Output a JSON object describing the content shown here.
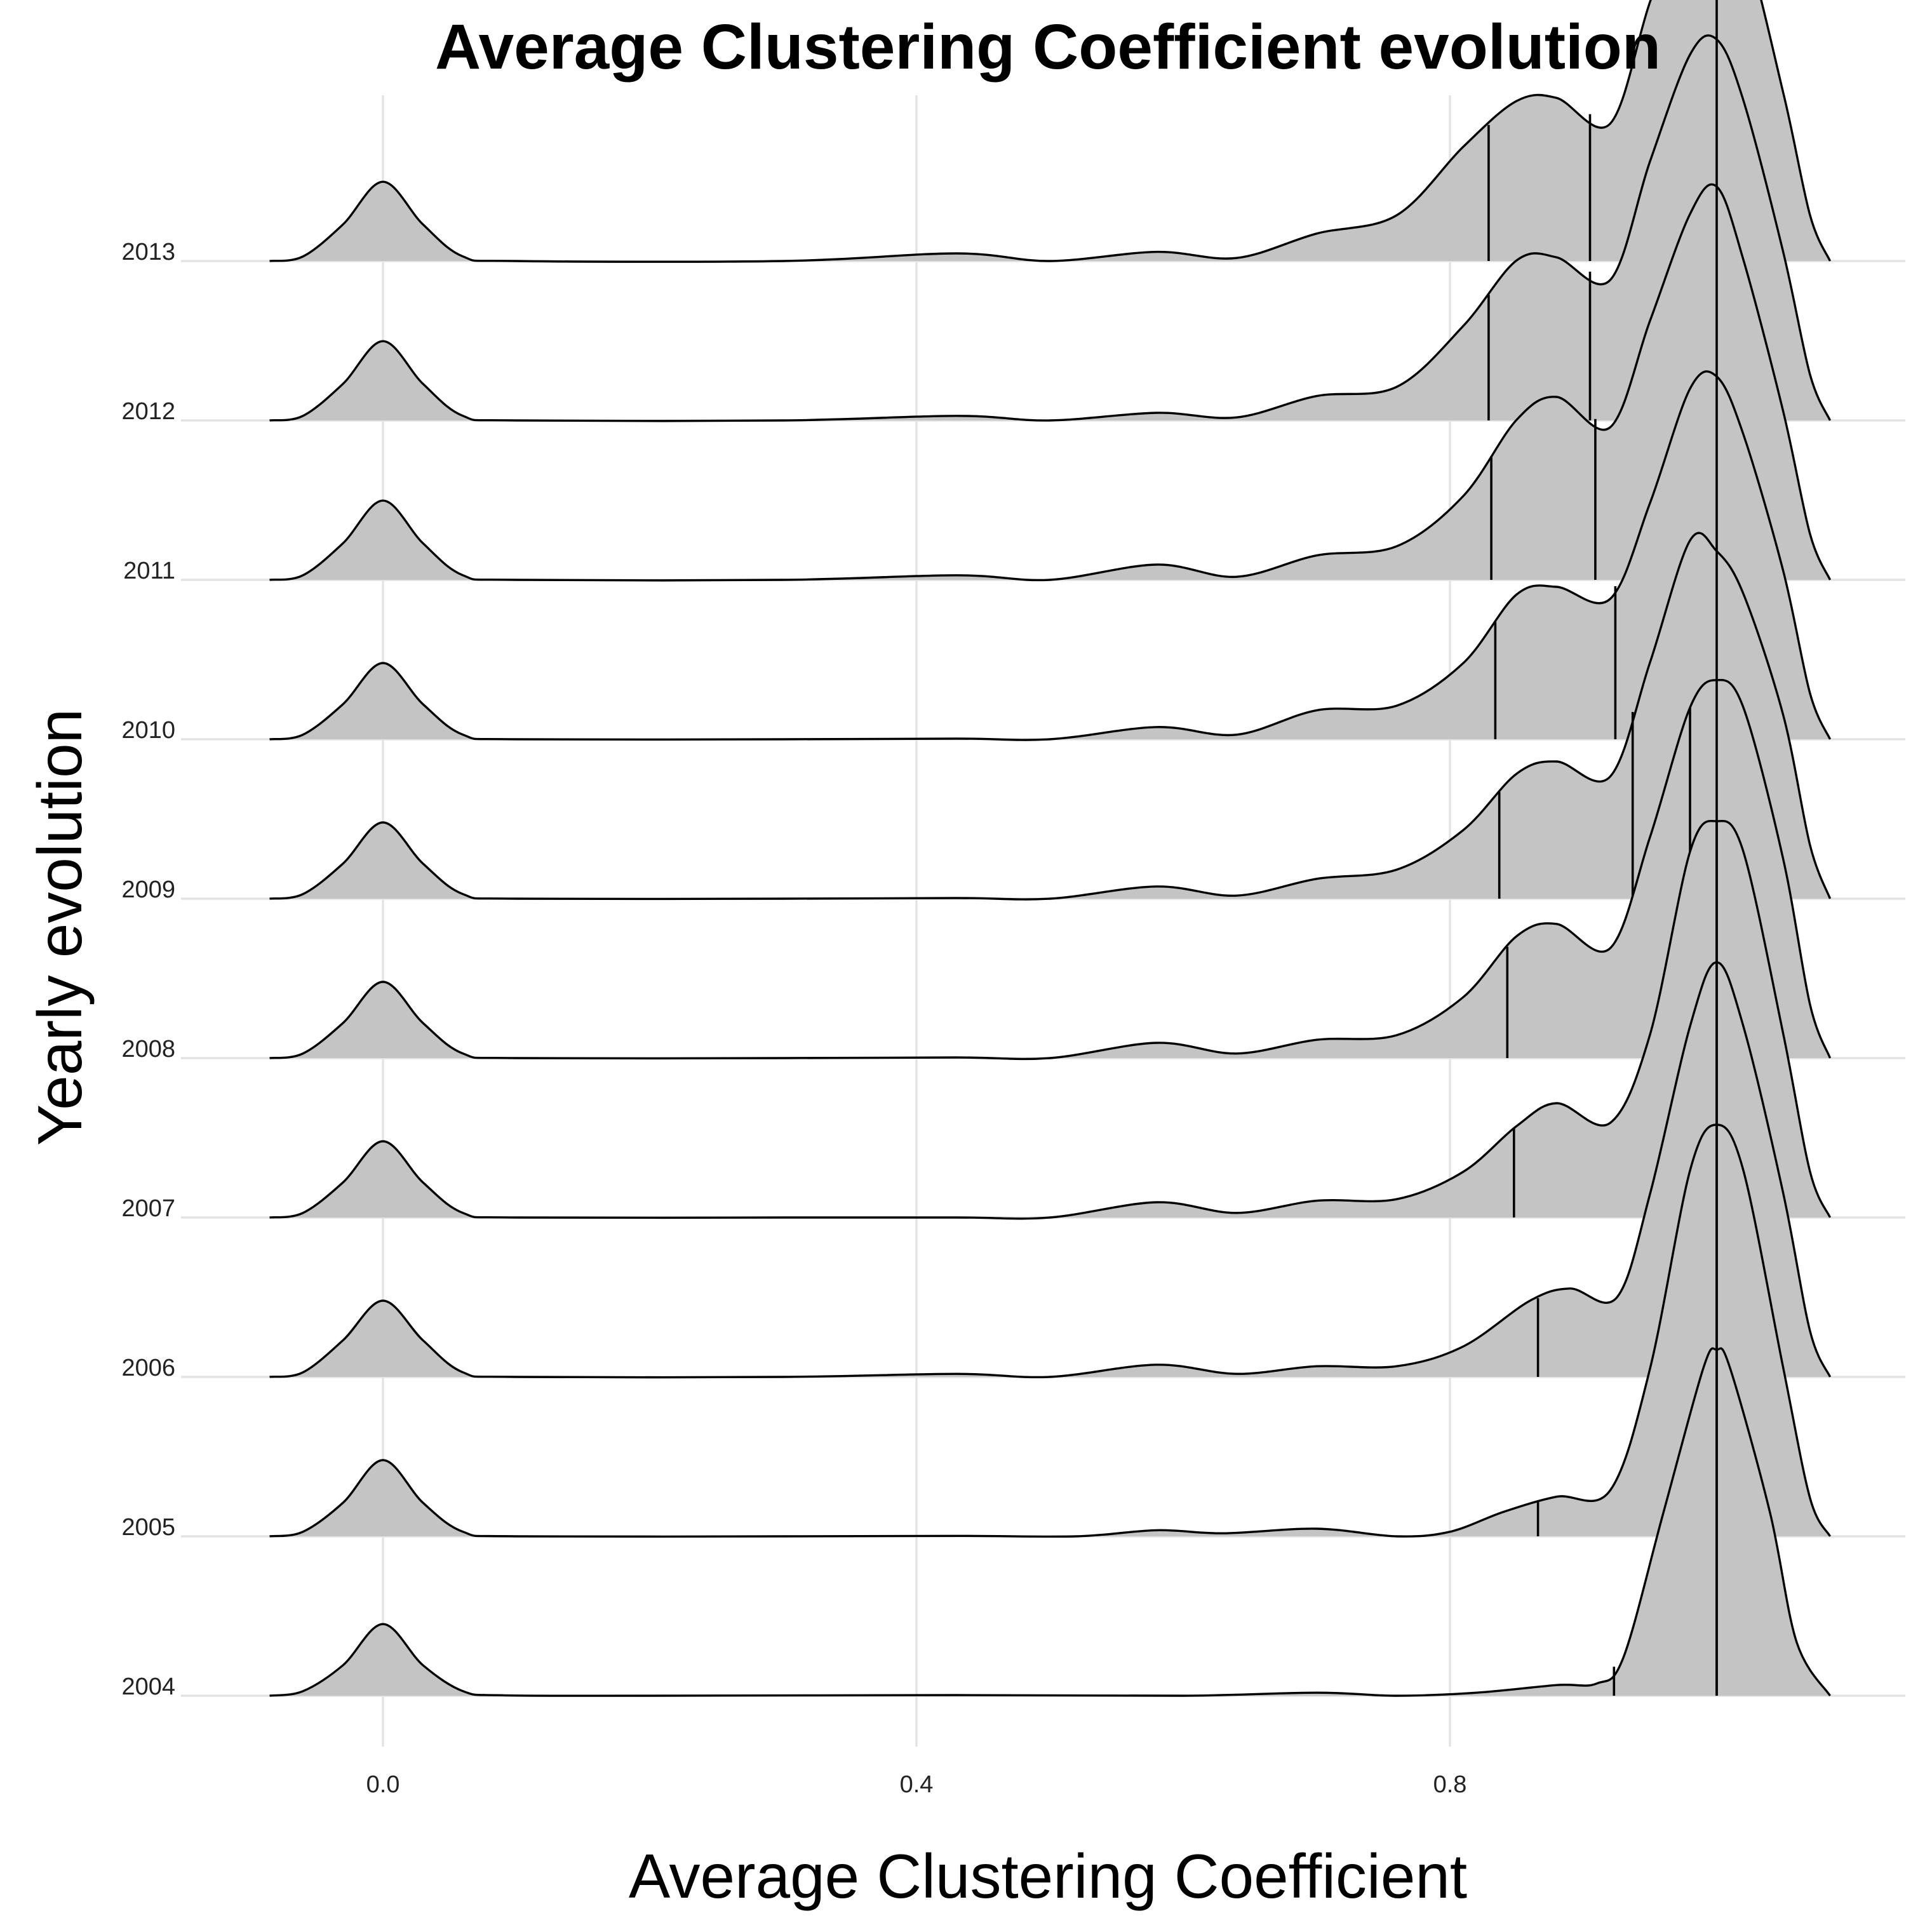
{
  "chart_data": {
    "type": "ridgeline",
    "title": "Average Clustering Coefficient evolution",
    "xlabel": "Average Clustering Coefficient",
    "ylabel": "Yearly evolution",
    "xlim": [
      -0.085,
      1.085
    ],
    "x_ticks": [
      {
        "value": 0.0,
        "label": "0.0"
      },
      {
        "value": 0.4,
        "label": "0.4"
      },
      {
        "value": 0.8,
        "label": "0.8"
      }
    ],
    "y_categories": [
      "2004",
      "2005",
      "2006",
      "2007",
      "2008",
      "2009",
      "2010",
      "2011",
      "2012",
      "2013"
    ],
    "grid": true,
    "fill_color": "#c4c4c4",
    "line_color": "#000000",
    "series": [
      {
        "name": "2004",
        "density": [
          [
            -0.085,
            0.0
          ],
          [
            -0.06,
            0.03
          ],
          [
            -0.03,
            0.2
          ],
          [
            0.0,
            0.47
          ],
          [
            0.03,
            0.2
          ],
          [
            0.06,
            0.03
          ],
          [
            0.09,
            0.003
          ],
          [
            0.2,
            0.0
          ],
          [
            0.43,
            0.004
          ],
          [
            0.6,
            0.0
          ],
          [
            0.7,
            0.02
          ],
          [
            0.76,
            0.0
          ],
          [
            0.82,
            0.02
          ],
          [
            0.88,
            0.07
          ],
          [
            0.91,
            0.08
          ],
          [
            0.93,
            0.25
          ],
          [
            0.96,
            1.2
          ],
          [
            0.99,
            2.15
          ],
          [
            1.0,
            2.27
          ],
          [
            1.01,
            2.15
          ],
          [
            1.04,
            1.2
          ],
          [
            1.06,
            0.35
          ],
          [
            1.085,
            0.0
          ]
        ],
        "quantiles": [
          0.923,
          1.0,
          1.0
        ]
      },
      {
        "name": "2005",
        "density": [
          [
            -0.085,
            0.0
          ],
          [
            -0.06,
            0.03
          ],
          [
            -0.03,
            0.22
          ],
          [
            0.0,
            0.5
          ],
          [
            0.03,
            0.22
          ],
          [
            0.06,
            0.03
          ],
          [
            0.1,
            0.0
          ],
          [
            0.3,
            0.0
          ],
          [
            0.43,
            0.003
          ],
          [
            0.52,
            0.0
          ],
          [
            0.58,
            0.04
          ],
          [
            0.63,
            0.02
          ],
          [
            0.7,
            0.05
          ],
          [
            0.76,
            0.0
          ],
          [
            0.8,
            0.03
          ],
          [
            0.84,
            0.16
          ],
          [
            0.88,
            0.26
          ],
          [
            0.92,
            0.3
          ],
          [
            0.95,
            1.1
          ],
          [
            0.98,
            2.4
          ],
          [
            1.0,
            2.7
          ],
          [
            1.02,
            2.4
          ],
          [
            1.05,
            1.1
          ],
          [
            1.07,
            0.25
          ],
          [
            1.085,
            0.0
          ]
        ],
        "quantiles": [
          0.866,
          1.0,
          1.0
        ]
      },
      {
        "name": "2006",
        "density": [
          [
            -0.085,
            0.0
          ],
          [
            -0.06,
            0.03
          ],
          [
            -0.03,
            0.24
          ],
          [
            0.0,
            0.5
          ],
          [
            0.03,
            0.24
          ],
          [
            0.06,
            0.03
          ],
          [
            0.1,
            0.0
          ],
          [
            0.3,
            0.0
          ],
          [
            0.43,
            0.02
          ],
          [
            0.5,
            0.0
          ],
          [
            0.58,
            0.08
          ],
          [
            0.64,
            0.02
          ],
          [
            0.7,
            0.07
          ],
          [
            0.76,
            0.07
          ],
          [
            0.81,
            0.2
          ],
          [
            0.86,
            0.5
          ],
          [
            0.89,
            0.58
          ],
          [
            0.925,
            0.52
          ],
          [
            0.95,
            1.2
          ],
          [
            0.98,
            2.3
          ],
          [
            1.0,
            2.72
          ],
          [
            1.02,
            2.3
          ],
          [
            1.05,
            1.2
          ],
          [
            1.07,
            0.3
          ],
          [
            1.085,
            0.0
          ]
        ],
        "quantiles": [
          0.866,
          1.0,
          1.0
        ]
      },
      {
        "name": "2007",
        "density": [
          [
            -0.085,
            0.0
          ],
          [
            -0.06,
            0.03
          ],
          [
            -0.03,
            0.23
          ],
          [
            0.0,
            0.5
          ],
          [
            0.03,
            0.23
          ],
          [
            0.06,
            0.03
          ],
          [
            0.1,
            0.0
          ],
          [
            0.3,
            0.0
          ],
          [
            0.43,
            0.0
          ],
          [
            0.5,
            0.0
          ],
          [
            0.58,
            0.1
          ],
          [
            0.64,
            0.03
          ],
          [
            0.7,
            0.11
          ],
          [
            0.76,
            0.12
          ],
          [
            0.81,
            0.3
          ],
          [
            0.85,
            0.6
          ],
          [
            0.88,
            0.75
          ],
          [
            0.92,
            0.62
          ],
          [
            0.95,
            1.2
          ],
          [
            0.98,
            2.4
          ],
          [
            1.0,
            2.6
          ],
          [
            1.02,
            2.4
          ],
          [
            1.05,
            1.2
          ],
          [
            1.07,
            0.3
          ],
          [
            1.085,
            0.0
          ]
        ],
        "quantiles": [
          0.848,
          1.0,
          1.0
        ]
      },
      {
        "name": "2008",
        "density": [
          [
            -0.085,
            0.0
          ],
          [
            -0.06,
            0.03
          ],
          [
            -0.03,
            0.23
          ],
          [
            0.0,
            0.5
          ],
          [
            0.03,
            0.23
          ],
          [
            0.06,
            0.03
          ],
          [
            0.1,
            0.0
          ],
          [
            0.3,
            0.0
          ],
          [
            0.43,
            0.004
          ],
          [
            0.5,
            0.0
          ],
          [
            0.58,
            0.1
          ],
          [
            0.64,
            0.03
          ],
          [
            0.7,
            0.12
          ],
          [
            0.76,
            0.15
          ],
          [
            0.81,
            0.4
          ],
          [
            0.85,
            0.8
          ],
          [
            0.88,
            0.88
          ],
          [
            0.92,
            0.72
          ],
          [
            0.95,
            1.45
          ],
          [
            0.98,
            2.3
          ],
          [
            1.0,
            2.48
          ],
          [
            1.02,
            2.3
          ],
          [
            1.05,
            1.3
          ],
          [
            1.07,
            0.35
          ],
          [
            1.085,
            0.0
          ]
        ],
        "quantiles": [
          0.843,
          0.98,
          1.0
        ]
      },
      {
        "name": "2009",
        "density": [
          [
            -0.085,
            0.0
          ],
          [
            -0.06,
            0.03
          ],
          [
            -0.03,
            0.23
          ],
          [
            0.0,
            0.5
          ],
          [
            0.03,
            0.23
          ],
          [
            0.06,
            0.03
          ],
          [
            0.1,
            0.0
          ],
          [
            0.3,
            0.0
          ],
          [
            0.43,
            0.004
          ],
          [
            0.5,
            0.0
          ],
          [
            0.58,
            0.08
          ],
          [
            0.64,
            0.02
          ],
          [
            0.7,
            0.13
          ],
          [
            0.76,
            0.19
          ],
          [
            0.81,
            0.45
          ],
          [
            0.85,
            0.82
          ],
          [
            0.88,
            0.9
          ],
          [
            0.92,
            0.8
          ],
          [
            0.95,
            1.55
          ],
          [
            0.98,
            2.35
          ],
          [
            1.0,
            2.28
          ],
          [
            1.02,
            2.0
          ],
          [
            1.05,
            1.2
          ],
          [
            1.07,
            0.35
          ],
          [
            1.085,
            0.0
          ]
        ],
        "quantiles": [
          0.837,
          0.937,
          1.0
        ]
      },
      {
        "name": "2010",
        "density": [
          [
            -0.085,
            0.0
          ],
          [
            -0.06,
            0.03
          ],
          [
            -0.03,
            0.23
          ],
          [
            0.0,
            0.5
          ],
          [
            0.03,
            0.23
          ],
          [
            0.06,
            0.03
          ],
          [
            0.1,
            0.0
          ],
          [
            0.3,
            0.0
          ],
          [
            0.43,
            0.004
          ],
          [
            0.5,
            0.0
          ],
          [
            0.58,
            0.08
          ],
          [
            0.64,
            0.03
          ],
          [
            0.7,
            0.19
          ],
          [
            0.76,
            0.22
          ],
          [
            0.81,
            0.5
          ],
          [
            0.85,
            0.95
          ],
          [
            0.88,
            1.0
          ],
          [
            0.92,
            0.92
          ],
          [
            0.95,
            1.55
          ],
          [
            0.98,
            2.3
          ],
          [
            1.0,
            2.38
          ],
          [
            1.02,
            2.0
          ],
          [
            1.05,
            1.1
          ],
          [
            1.07,
            0.3
          ],
          [
            1.085,
            0.0
          ]
        ],
        "quantiles": [
          0.834,
          0.924,
          1.0
        ]
      },
      {
        "name": "2011",
        "density": [
          [
            -0.085,
            0.0
          ],
          [
            -0.06,
            0.03
          ],
          [
            -0.03,
            0.24
          ],
          [
            0.0,
            0.52
          ],
          [
            0.03,
            0.24
          ],
          [
            0.06,
            0.03
          ],
          [
            0.1,
            0.0
          ],
          [
            0.3,
            0.0
          ],
          [
            0.43,
            0.03
          ],
          [
            0.5,
            0.0
          ],
          [
            0.58,
            0.1
          ],
          [
            0.64,
            0.02
          ],
          [
            0.7,
            0.16
          ],
          [
            0.76,
            0.22
          ],
          [
            0.81,
            0.55
          ],
          [
            0.85,
            1.05
          ],
          [
            0.88,
            1.2
          ],
          [
            0.92,
            1.0
          ],
          [
            0.95,
            1.7
          ],
          [
            0.98,
            2.4
          ],
          [
            1.0,
            2.58
          ],
          [
            1.02,
            2.1
          ],
          [
            1.05,
            1.1
          ],
          [
            1.07,
            0.3
          ],
          [
            1.085,
            0.0
          ]
        ],
        "quantiles": [
          0.831,
          0.909,
          1.0
        ]
      },
      {
        "name": "2012",
        "density": [
          [
            -0.085,
            0.0
          ],
          [
            -0.06,
            0.03
          ],
          [
            -0.03,
            0.24
          ],
          [
            0.0,
            0.52
          ],
          [
            0.03,
            0.24
          ],
          [
            0.06,
            0.03
          ],
          [
            0.1,
            0.0
          ],
          [
            0.3,
            0.0
          ],
          [
            0.43,
            0.03
          ],
          [
            0.5,
            0.0
          ],
          [
            0.58,
            0.05
          ],
          [
            0.64,
            0.02
          ],
          [
            0.7,
            0.16
          ],
          [
            0.76,
            0.22
          ],
          [
            0.81,
            0.62
          ],
          [
            0.85,
            1.05
          ],
          [
            0.88,
            1.07
          ],
          [
            0.92,
            0.92
          ],
          [
            0.95,
            1.7
          ],
          [
            0.98,
            2.4
          ],
          [
            1.0,
            2.5
          ],
          [
            1.02,
            2.1
          ],
          [
            1.05,
            1.1
          ],
          [
            1.07,
            0.3
          ],
          [
            1.085,
            0.0
          ]
        ],
        "quantiles": [
          0.829,
          0.905,
          1.0
        ]
      },
      {
        "name": "2013",
        "density": [
          [
            -0.085,
            0.0
          ],
          [
            -0.06,
            0.03
          ],
          [
            -0.03,
            0.24
          ],
          [
            0.0,
            0.52
          ],
          [
            0.03,
            0.24
          ],
          [
            0.06,
            0.03
          ],
          [
            0.1,
            0.0
          ],
          [
            0.3,
            0.0
          ],
          [
            0.43,
            0.05
          ],
          [
            0.5,
            0.0
          ],
          [
            0.58,
            0.06
          ],
          [
            0.64,
            0.02
          ],
          [
            0.7,
            0.18
          ],
          [
            0.76,
            0.3
          ],
          [
            0.81,
            0.75
          ],
          [
            0.85,
            1.05
          ],
          [
            0.88,
            1.07
          ],
          [
            0.92,
            0.9
          ],
          [
            0.95,
            1.7
          ],
          [
            0.98,
            2.4
          ],
          [
            1.0,
            2.03
          ],
          [
            1.02,
            2.1
          ],
          [
            1.05,
            1.1
          ],
          [
            1.07,
            0.3
          ],
          [
            1.085,
            0.0
          ]
        ],
        "quantiles": [
          0.829,
          0.905,
          1.0
        ]
      }
    ]
  }
}
